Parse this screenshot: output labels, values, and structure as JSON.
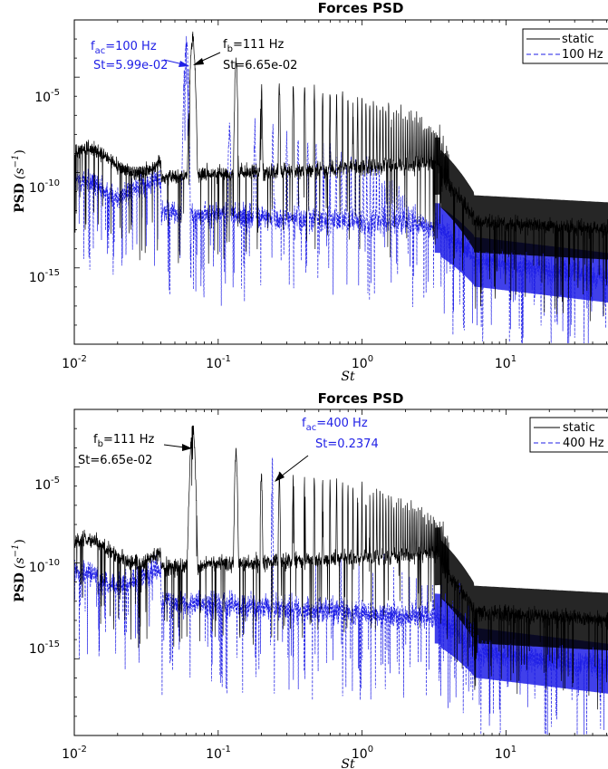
{
  "chart_data": [
    {
      "type": "line",
      "title": "Forces PSD",
      "xlabel": "St",
      "ylabel": "PSD (s^-1)",
      "x_scale": "log",
      "y_scale": "log",
      "xlim": [
        0.01,
        60
      ],
      "ylim": [
        1e-19,
        0.01
      ],
      "x_ticks": [
        "10^-2",
        "10^-1",
        "10^0",
        "10^1"
      ],
      "y_ticks": [
        "10^-5",
        "10^-10",
        "10^-15"
      ],
      "legend_position": "top-right",
      "series": [
        {
          "name": "static",
          "color": "#000000",
          "style": "solid"
        },
        {
          "name": "100 Hz",
          "color": "#1f1fe6",
          "style": "dashed"
        }
      ],
      "annotations": [
        {
          "line1": "f_ac=100 Hz",
          "line2": "St=5.99e-02",
          "color": "#1f1fe6",
          "x": 0.0599
        },
        {
          "line1": "f_b=111 Hz",
          "line2": "St=6.65e-02",
          "color": "#000000",
          "x": 0.0665
        }
      ]
    },
    {
      "type": "line",
      "title": "Forces PSD",
      "xlabel": "St",
      "ylabel": "PSD (s^-1)",
      "x_scale": "log",
      "y_scale": "log",
      "xlim": [
        0.01,
        60
      ],
      "ylim": [
        1e-19,
        0.01
      ],
      "x_ticks": [
        "10^-2",
        "10^-1",
        "10^0",
        "10^1"
      ],
      "y_ticks": [
        "10^-5",
        "10^-10",
        "10^-15"
      ],
      "legend_position": "top-right",
      "series": [
        {
          "name": "static",
          "color": "#000000",
          "style": "solid"
        },
        {
          "name": "400 Hz",
          "color": "#1f1fe6",
          "style": "dashed"
        }
      ],
      "annotations": [
        {
          "line1": "f_b=111 Hz",
          "line2": "St=6.65e-02",
          "color": "#000000",
          "x": 0.0665
        },
        {
          "line1": "f_ac=400 Hz",
          "line2": "St=0.2374",
          "color": "#1f1fe6",
          "x": 0.2374
        }
      ]
    }
  ],
  "labels": {
    "title_top": "Forces PSD",
    "title_bottom": "Forces PSD",
    "xlabel": "St",
    "ylabel_main": "PSD",
    "ylabel_unit": "(s",
    "ylabel_exp": "−1",
    "ylabel_close": ")",
    "ten": "10",
    "xexp": [
      "-2",
      "-1",
      "0",
      "1"
    ],
    "yexp": [
      "-5",
      "-10",
      "-15"
    ],
    "legend_top": [
      "static",
      "100 Hz"
    ],
    "legend_bottom": [
      "static",
      "400 Hz"
    ],
    "ann_top_ac_pre": "f",
    "ann_top_ac_sub": "ac",
    "ann_top_ac_post": "=100 Hz",
    "ann_top_ac_st": "St=5.99e-02",
    "ann_top_b_pre": "f",
    "ann_top_b_sub": "b",
    "ann_top_b_post": "=111 Hz",
    "ann_top_b_st": "St=6.65e-02",
    "ann_bot_b_pre": "f",
    "ann_bot_b_sub": "b",
    "ann_bot_b_post": "=111 Hz",
    "ann_bot_b_st": "St=6.65e-02",
    "ann_bot_ac_pre": "f",
    "ann_bot_ac_sub": "ac",
    "ann_bot_ac_post": "=400 Hz",
    "ann_bot_ac_st": "St=0.2374"
  }
}
